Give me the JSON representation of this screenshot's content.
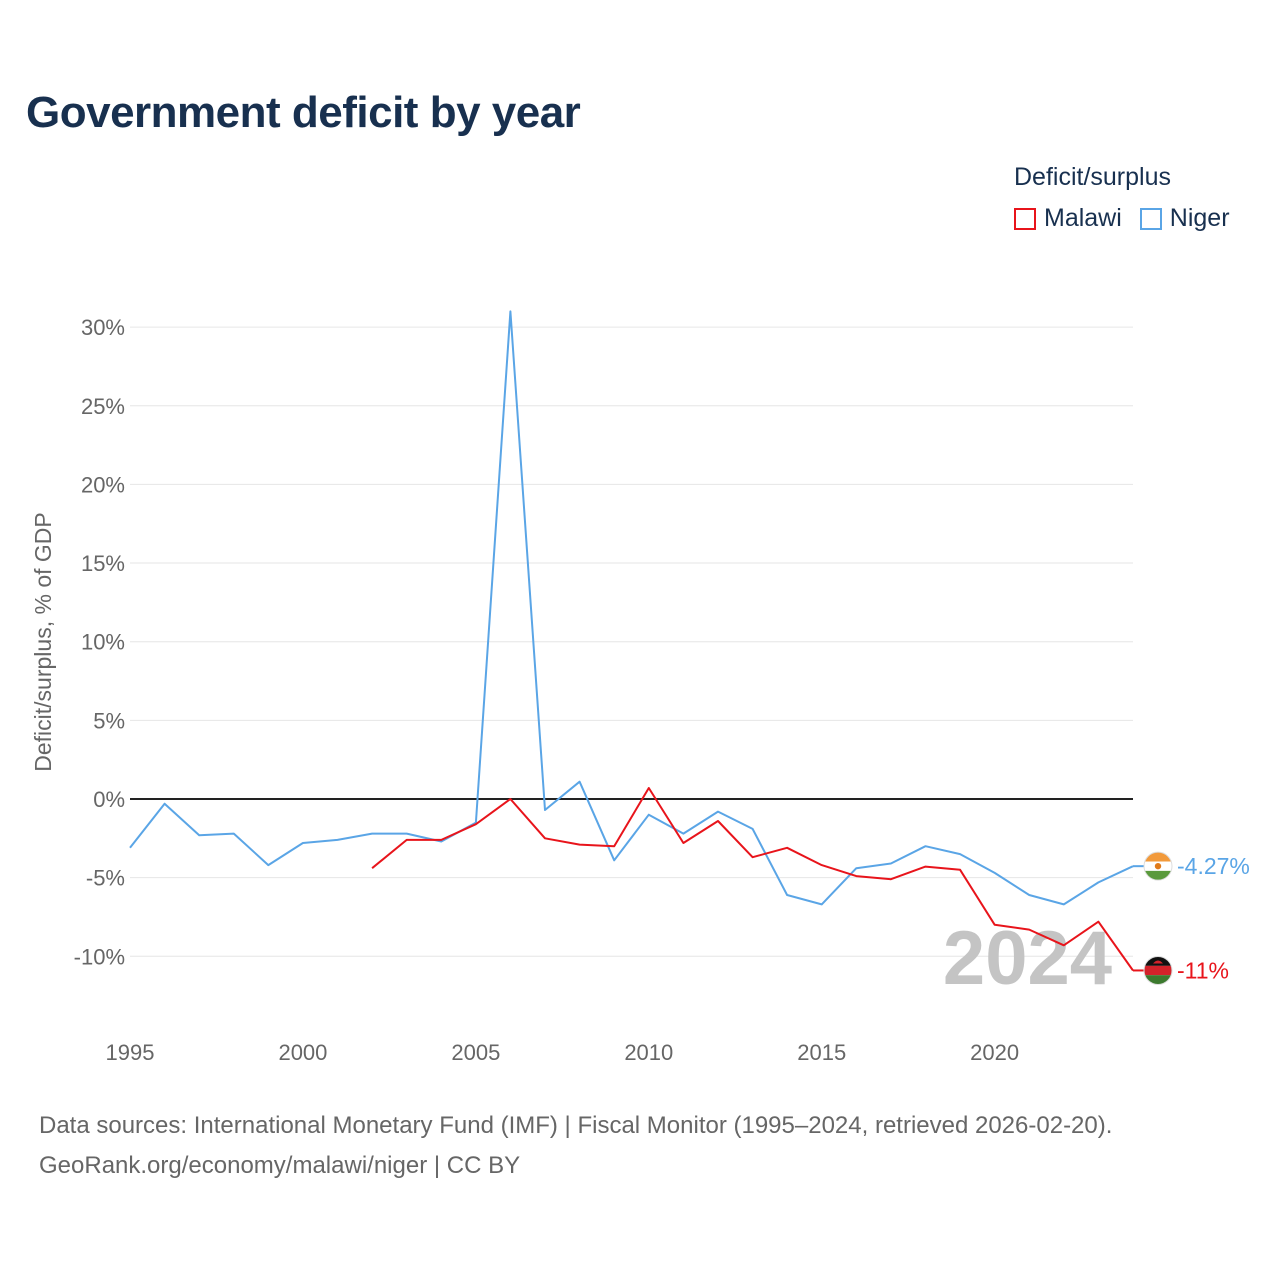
{
  "chart_data": {
    "type": "line",
    "title": "Government deficit by year",
    "ylabel": "Deficit/surplus, % of GDP",
    "xlabel": "",
    "xlim": [
      1995,
      2024
    ],
    "ylim": [
      -14,
      32
    ],
    "x_ticks": [
      1995,
      2000,
      2005,
      2010,
      2015,
      2020
    ],
    "x_tick_labels": [
      "1995",
      "2000",
      "2005",
      "2010",
      "2015",
      "2020"
    ],
    "y_ticks": [
      -10,
      -5,
      0,
      5,
      10,
      15,
      20,
      25,
      30
    ],
    "y_tick_labels": [
      "-10%",
      "-5%",
      "0%",
      "5%",
      "10%",
      "15%",
      "20%",
      "25%",
      "30%"
    ],
    "legend_title": "Deficit/surplus",
    "legend_position": "top-right",
    "year_watermark": "2024",
    "series": [
      {
        "name": "Malawi",
        "color": "#e8141b",
        "end_label": "-11%",
        "flag_icon": "malawi-flag-icon",
        "x": [
          2002,
          2003,
          2004,
          2005,
          2006,
          2007,
          2008,
          2009,
          2010,
          2011,
          2012,
          2013,
          2014,
          2015,
          2016,
          2017,
          2018,
          2019,
          2020,
          2021,
          2022,
          2023,
          2024
        ],
        "values": [
          -4.4,
          -2.6,
          -2.6,
          -1.6,
          0.0,
          -2.5,
          -2.9,
          -3.0,
          0.7,
          -2.8,
          -1.4,
          -3.7,
          -3.1,
          -4.2,
          -4.9,
          -5.1,
          -4.3,
          -4.5,
          -8.0,
          -8.3,
          -9.3,
          -7.8,
          -10.9
        ]
      },
      {
        "name": "Niger",
        "color": "#5aa5e6",
        "end_label": "-4.27%",
        "flag_icon": "niger-flag-icon",
        "x": [
          1995,
          1996,
          1997,
          1998,
          1999,
          2000,
          2001,
          2002,
          2003,
          2004,
          2005,
          2006,
          2007,
          2008,
          2009,
          2010,
          2011,
          2012,
          2013,
          2014,
          2015,
          2016,
          2017,
          2018,
          2019,
          2020,
          2021,
          2022,
          2023,
          2024
        ],
        "values": [
          -3.1,
          -0.3,
          -2.3,
          -2.2,
          -4.2,
          -2.8,
          -2.6,
          -2.2,
          -2.2,
          -2.7,
          -1.5,
          31.0,
          -0.7,
          1.1,
          -3.9,
          -1.0,
          -2.2,
          -0.8,
          -1.9,
          -6.1,
          -6.7,
          -4.4,
          -4.1,
          -3.0,
          -3.5,
          -4.7,
          -6.1,
          -6.7,
          -5.3,
          -4.27
        ]
      }
    ]
  },
  "source": {
    "line1": "Data sources: International Monetary Fund (IMF) | Fiscal Monitor (1995–2024, retrieved 2026-02-20).",
    "line2": "GeoRank.org/economy/malawi/niger | CC BY"
  }
}
